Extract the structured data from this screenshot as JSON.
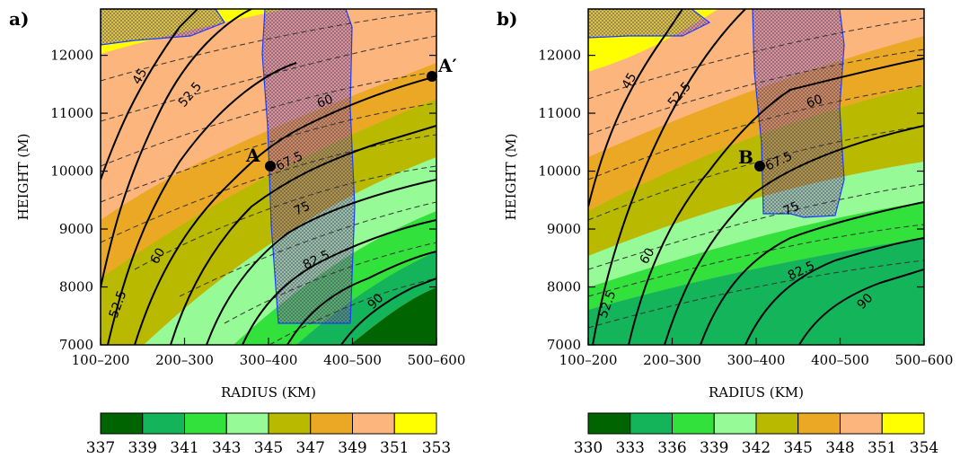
{
  "chart_data": [
    {
      "type": "contour",
      "panel_label": "a)",
      "xlabel": "RADIUS (KM)",
      "ylabel": "HEIGHT (M)",
      "categories": [
        "100–200",
        "200–300",
        "300–400",
        "400–500",
        "500–600"
      ],
      "y_ticks": [
        7000,
        8000,
        9000,
        10000,
        11000,
        12000
      ],
      "ylim": [
        7000,
        12800
      ],
      "fill_levels": [
        337,
        339,
        341,
        343,
        345,
        347,
        349,
        351,
        353
      ],
      "fill_colors": [
        "#006400",
        "#14b45a",
        "#32e13c",
        "#96fa96",
        "#b9b900",
        "#eaa825",
        "#fbb57d",
        "#ffff00"
      ],
      "contour_labels": [
        "45",
        "52.5",
        "60",
        "67.5",
        "75",
        "82.5",
        "90",
        "52.5",
        "60"
      ],
      "points": [
        {
          "label": "A",
          "x": 2.3,
          "y": 10100
        },
        {
          "label": "A′",
          "x": 4.8,
          "y": 11600
        }
      ],
      "grid": false,
      "legend": "bottom"
    },
    {
      "type": "contour",
      "panel_label": "b)",
      "xlabel": "RADIUS (KM)",
      "ylabel": "HEIGHT (M)",
      "categories": [
        "100–200",
        "200–300",
        "300–400",
        "400–500",
        "500–600"
      ],
      "y_ticks": [
        7000,
        8000,
        9000,
        10000,
        11000,
        12000
      ],
      "ylim": [
        7000,
        12800
      ],
      "fill_levels": [
        330,
        333,
        336,
        339,
        342,
        345,
        348,
        351,
        354
      ],
      "fill_colors": [
        "#006400",
        "#14b45a",
        "#32e13c",
        "#96fa96",
        "#b9b900",
        "#eaa825",
        "#fbb57d",
        "#ffff00"
      ],
      "contour_labels": [
        "45",
        "52.5",
        "60",
        "67.5",
        "75",
        "82.5",
        "90",
        "52.5",
        "60"
      ],
      "points": [
        {
          "label": "B",
          "x": 2.35,
          "y": 10100
        }
      ],
      "grid": false,
      "legend": "bottom"
    }
  ]
}
